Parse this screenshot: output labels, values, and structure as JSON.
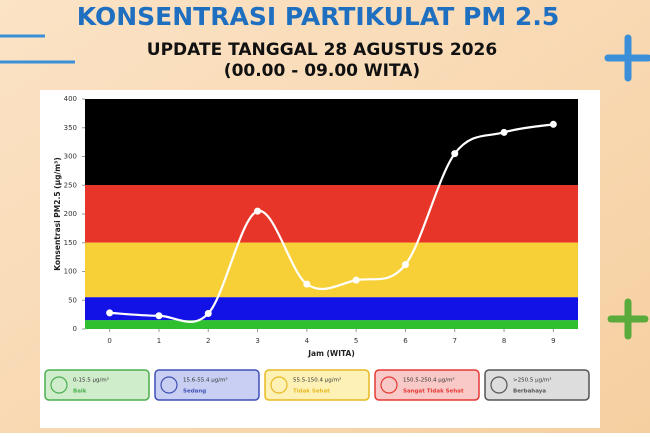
{
  "chart_data": {
    "type": "line",
    "title": "KONSENTRASI PARTIKULAT PM 2.5",
    "subtitle": "UPDATE TANGGAL 28 AGUSTUS 2026",
    "subtitle2": "(00.00 - 09.00 WITA)",
    "x_label": "Jam (WITA)",
    "y_label": "Konsentrasi PM2.5 (µg/m³)",
    "x": [
      0,
      1,
      2,
      3,
      4,
      5,
      6,
      7,
      8,
      9
    ],
    "series": [
      {
        "name": "PM 2.5",
        "color": "#ffffff",
        "values": [
          28,
          23,
          27,
          205,
          78,
          85,
          112,
          305,
          342,
          356
        ]
      }
    ],
    "xlim": [
      -0.5,
      9.5
    ],
    "xticks": [
      0,
      1,
      2,
      3,
      4,
      5,
      6,
      7,
      8,
      9
    ],
    "ylim": [
      0,
      400
    ],
    "yticks": [
      0,
      50,
      100,
      150,
      200,
      250,
      300,
      350,
      400
    ],
    "bands": [
      {
        "name": "Baik",
        "range": "0-15.5 µg/m³",
        "from": 0,
        "to": 15.5,
        "color": "#2fc02f",
        "bg": "#cfeccb",
        "border": "#4caf50"
      },
      {
        "name": "Sedang",
        "range": "15.6-55.4 µg/m³",
        "from": 15.5,
        "to": 55.4,
        "color": "#1212e6",
        "bg": "#c8cff2",
        "border": "#3f51b5"
      },
      {
        "name": "Tidak Sehat",
        "range": "55.5-150.4 µg/m³",
        "from": 55.4,
        "to": 150.4,
        "color": "#f7d038",
        "bg": "#fdf1b5",
        "border": "#e8b923"
      },
      {
        "name": "Sangat Tidak Sehat",
        "range": "150.5-250.4 µg/m³",
        "from": 150.4,
        "to": 250.4,
        "color": "#e8352a",
        "bg": "#f8c9c6",
        "border": "#e53935"
      },
      {
        "name": "Berbahaya",
        "range": ">250.5 µg/m³",
        "from": 250.4,
        "to": 400,
        "color": "#000000",
        "bg": "#dddddd",
        "border": "#555555"
      }
    ]
  }
}
